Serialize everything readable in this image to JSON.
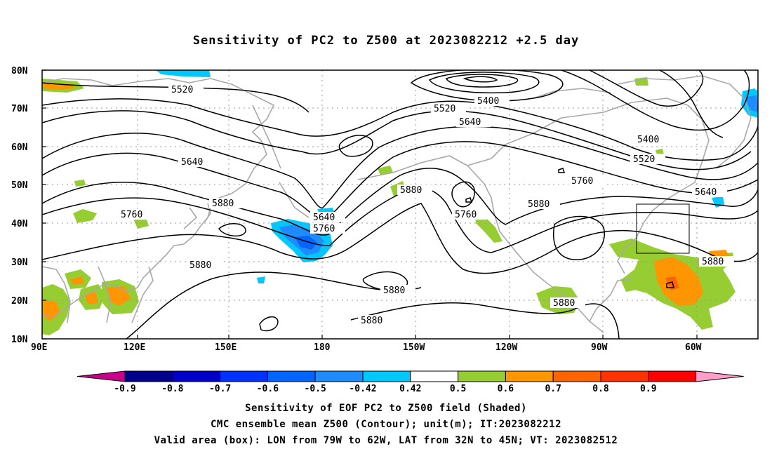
{
  "title": "Sensitivity of PC2 to Z500 at 2023082212 +2.5 day",
  "map": {
    "lat_labels": [
      "80N",
      "70N",
      "60N",
      "50N",
      "40N",
      "30N",
      "20N",
      "10N"
    ],
    "lon_labels": [
      "90E",
      "120E",
      "150E",
      "180",
      "150W",
      "120W",
      "90W",
      "60W"
    ],
    "contour_labels": [
      "5520",
      "5400",
      "5520",
      "5640",
      "5400",
      "5520",
      "5640",
      "5760",
      "5640",
      "5880",
      "5880",
      "5640",
      "5760",
      "5760",
      "5880",
      "5760",
      "5880",
      "5880",
      "5880",
      "5880",
      "5880"
    ]
  },
  "colorbar": {
    "tick_labels": [
      "-0.9",
      "-0.8",
      "-0.7",
      "-0.6",
      "-0.5",
      "-0.42",
      "0.42",
      "0.5",
      "0.6",
      "0.7",
      "0.8",
      "0.9"
    ],
    "colors": [
      "#c8008c",
      "#00008c",
      "#0000c8",
      "#0032ff",
      "#0064ff",
      "#1e8cff",
      "#00c8ff",
      "#ffffff",
      "#96cd32",
      "#ff9600",
      "#ff6400",
      "#ff3200",
      "#ff0000",
      "#ff9ec8"
    ]
  },
  "footer": {
    "line1": "Sensitivity of EOF PC2 to Z500 field (Shaded)",
    "line2": "CMC ensemble mean Z500 (Contour); unit(m); IT:2023082212",
    "line3": "Valid area (box): LON from 79W to 62W, LAT from 32N to 45N; VT: 2023082512"
  }
}
